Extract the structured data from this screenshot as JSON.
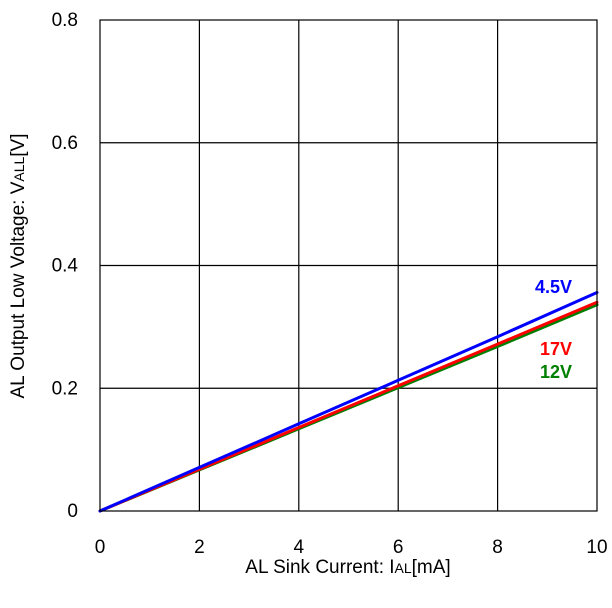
{
  "chart_data": {
    "type": "line",
    "title": "",
    "xlabel": {
      "main": "AL Sink Current: I",
      "sub": "AL",
      "suffix": "[mA]"
    },
    "ylabel": {
      "main": "AL Output Low Voltage: V",
      "sub": "ALL",
      "suffix": "[V]"
    },
    "xlim": [
      0,
      10
    ],
    "ylim": [
      0,
      0.8
    ],
    "xticks": [
      0,
      2,
      4,
      6,
      8,
      10
    ],
    "xtick_labels": [
      "0",
      "2",
      "4",
      "6",
      "8",
      "10"
    ],
    "yticks": [
      0,
      0.2,
      0.4,
      0.6,
      0.8
    ],
    "ytick_labels": [
      "0",
      "0.2",
      "0.4",
      "0.6",
      "0.8"
    ],
    "grid": true,
    "series": [
      {
        "name": "4.5V",
        "color": "#0000ff",
        "x": [
          0,
          2,
          4,
          6,
          8,
          10
        ],
        "y": [
          0,
          0.071,
          0.142,
          0.213,
          0.284,
          0.356
        ]
      },
      {
        "name": "17V",
        "color": "#ff0000",
        "x": [
          0,
          2,
          4,
          6,
          8,
          10
        ],
        "y": [
          0,
          0.068,
          0.136,
          0.204,
          0.272,
          0.34
        ]
      },
      {
        "name": "12V",
        "color": "#008000",
        "x": [
          0,
          2,
          4,
          6,
          8,
          10
        ],
        "y": [
          0,
          0.067,
          0.134,
          0.201,
          0.268,
          0.336
        ]
      }
    ]
  }
}
